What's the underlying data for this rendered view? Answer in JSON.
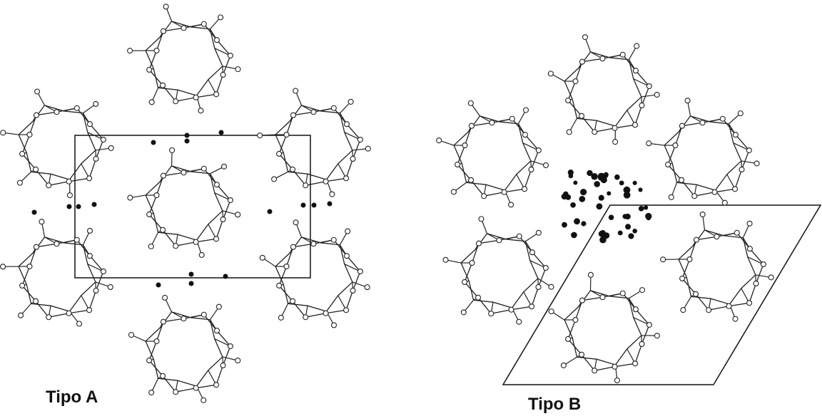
{
  "panels": [
    {
      "label": "Tipo A"
    },
    {
      "label": "Tipo B"
    }
  ]
}
